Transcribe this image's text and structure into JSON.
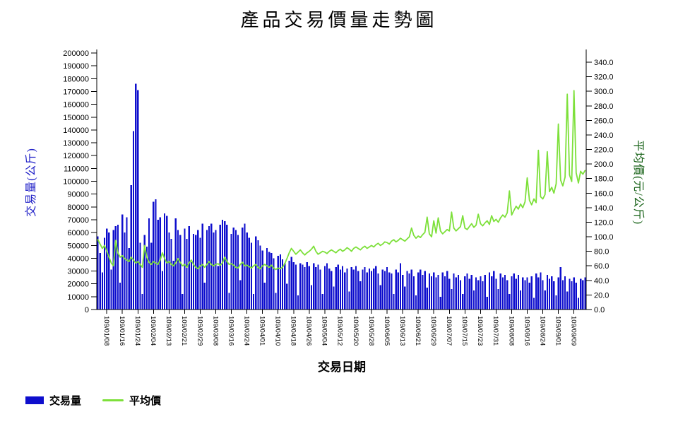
{
  "chart": {
    "title": "產品交易價量走勢圖",
    "x_axis_title": "交易日期",
    "left_axis_title": "交易量(公斤)",
    "right_axis_title": "平均價(元/公斤)",
    "legend": [
      {
        "label": "交易量",
        "type": "bar"
      },
      {
        "label": "平均價",
        "type": "line"
      }
    ],
    "colors": {
      "bar": "#0e0ecd",
      "line": "#7de03a",
      "left_axis_title": "#2323c8",
      "right_axis_title": "#156015",
      "axis_line": "#000000",
      "tick_text": "#000000"
    }
  },
  "chart_data": {
    "type": "combo",
    "title": "產品交易價量走勢圖",
    "xlabel": "交易日期",
    "grid": false,
    "legend_position": "bottom-left",
    "n_points": 220,
    "x_tick_start_index": 4,
    "x_tick_step": 7,
    "x_tick_labels": [
      "109/01/08",
      "109/01/16",
      "109/01/24",
      "109/02/04",
      "109/02/13",
      "109/02/21",
      "109/02/29",
      "109/03/08",
      "109/03/16",
      "109/03/24",
      "109/04/01",
      "109/04/10",
      "109/04/18",
      "109/04/26",
      "109/05/04",
      "109/05/12",
      "109/05/20",
      "109/05/28",
      "109/06/05",
      "109/06/13",
      "109/06/21",
      "109/06/29",
      "109/07/07",
      "109/07/15",
      "109/07/23",
      "109/07/31",
      "109/08/08",
      "109/08/16",
      "109/08/24",
      "109/09/01",
      "109/09/09"
    ],
    "left_axis": {
      "title": "交易量(公斤)",
      "min": 0,
      "max": 200000,
      "tick_step": 10000,
      "tick_labels": [
        "0",
        "10000",
        "20000",
        "30000",
        "40000",
        "50000",
        "60000",
        "70000",
        "80000",
        "90000",
        "100000",
        "110000",
        "120000",
        "130000",
        "140000",
        "150000",
        "160000",
        "170000",
        "180000",
        "190000",
        "200000"
      ]
    },
    "right_axis": {
      "title": "平均價(元/公斤)",
      "min": 0,
      "max": 340,
      "tick_step": 20,
      "plot_top_value": 352.9,
      "tick_labels": [
        "0.0",
        "20.0",
        "40.0",
        "60.0",
        "80.0",
        "100.0",
        "120.0",
        "140.0",
        "160.0",
        "180.0",
        "200.0",
        "220.0",
        "240.0",
        "260.0",
        "280.0",
        "300.0",
        "320.0",
        "340.0"
      ]
    },
    "series": [
      {
        "name": "交易量",
        "type": "bar",
        "axis": "left",
        "color": "#0e0ecd",
        "values": [
          57000,
          44000,
          29000,
          56000,
          63000,
          60000,
          31000,
          62000,
          65000,
          66000,
          21000,
          74000,
          60000,
          72000,
          48000,
          97000,
          139000,
          176000,
          171000,
          52000,
          12000,
          58000,
          49000,
          71000,
          52000,
          84000,
          86000,
          70000,
          72000,
          30000,
          75000,
          73000,
          60000,
          55000,
          38000,
          71000,
          62000,
          58000,
          12000,
          63000,
          55000,
          65000,
          37000,
          59000,
          58000,
          62000,
          56000,
          67000,
          21000,
          62000,
          65000,
          67000,
          60000,
          62000,
          34000,
          66000,
          70000,
          69000,
          66000,
          13000,
          59000,
          64000,
          62000,
          58000,
          23000,
          64000,
          67000,
          60000,
          56000,
          52000,
          12000,
          57000,
          54000,
          50000,
          46000,
          21000,
          48000,
          45000,
          44000,
          40000,
          13000,
          42000,
          43000,
          39000,
          36000,
          20000,
          38000,
          41000,
          37000,
          35000,
          11000,
          36000,
          35000,
          33000,
          37000,
          34000,
          19000,
          36000,
          33000,
          35000,
          31000,
          12000,
          34000,
          36000,
          32000,
          30000,
          18000,
          33000,
          35000,
          31000,
          34000,
          29000,
          32000,
          14000,
          33000,
          31000,
          34000,
          30000,
          22000,
          31000,
          33000,
          29000,
          32000,
          30000,
          32000,
          34000,
          28000,
          19000,
          31000,
          30000,
          33000,
          29000,
          28000,
          12000,
          31000,
          29000,
          36000,
          27000,
          18000,
          30000,
          28000,
          31000,
          26000,
          11000,
          29000,
          31000,
          27000,
          30000,
          17000,
          28000,
          26000,
          29000,
          25000,
          27000,
          10000,
          29000,
          26000,
          30000,
          24000,
          16000,
          28000,
          25000,
          27000,
          23000,
          12000,
          26000,
          28000,
          24000,
          27000,
          15000,
          25000,
          23000,
          26000,
          22000,
          27000,
          10000,
          29000,
          26000,
          30000,
          24000,
          16000,
          28000,
          25000,
          27000,
          23000,
          12000,
          26000,
          28000,
          24000,
          27000,
          15000,
          25000,
          23000,
          25000,
          21000,
          26000,
          9000,
          28000,
          25000,
          29000,
          23000,
          15000,
          27000,
          24000,
          26000,
          22000,
          11000,
          25000,
          33000,
          23000,
          26000,
          14000,
          24000,
          22000,
          25000,
          21000,
          9000,
          24000,
          23000,
          25000
        ]
      },
      {
        "name": "平均價",
        "type": "line",
        "axis": "right",
        "color": "#7de03a",
        "values": [
          96,
          90,
          84,
          88,
          80,
          72,
          64,
          60,
          95,
          78,
          72,
          74,
          70,
          68,
          66,
          72,
          68,
          64,
          66,
          62,
          58,
          88,
          72,
          65,
          62,
          66,
          64,
          62,
          68,
          78,
          70,
          64,
          66,
          62,
          60,
          64,
          70,
          65,
          60,
          62,
          58,
          64,
          68,
          62,
          58,
          56,
          60,
          62,
          58,
          62,
          66,
          62,
          60,
          62,
          63,
          61,
          64,
          72,
          66,
          62,
          63,
          61,
          58,
          57,
          62,
          65,
          60,
          61,
          59,
          57,
          60,
          62,
          58,
          56,
          60,
          62,
          60,
          58,
          61,
          57,
          55,
          57,
          56,
          58,
          63,
          70,
          78,
          84,
          80,
          76,
          79,
          82,
          78,
          75,
          78,
          80,
          83,
          87,
          80,
          76,
          78,
          80,
          79,
          77,
          80,
          82,
          80,
          78,
          81,
          83,
          80,
          82,
          85,
          83,
          80,
          84,
          86,
          84,
          82,
          85,
          87,
          84,
          86,
          88,
          86,
          89,
          91,
          88,
          90,
          93,
          92,
          90,
          94,
          96,
          93,
          95,
          98,
          96,
          94,
          97,
          100,
          112,
          102,
          98,
          101,
          99,
          103,
          106,
          127,
          104,
          100,
          122,
          105,
          126,
          108,
          104,
          107,
          110,
          108,
          134,
          112,
          108,
          111,
          114,
          129,
          112,
          110,
          114,
          118,
          113,
          116,
          131,
          118,
          115,
          119,
          122,
          117,
          129,
          121,
          124,
          120,
          126,
          130,
          127,
          133,
          163,
          130,
          136,
          142,
          138,
          145,
          140,
          148,
          181,
          150,
          144,
          152,
          147,
          219,
          155,
          152,
          158,
          217,
          162,
          168,
          160,
          173,
          255,
          178,
          170,
          182,
          296,
          185,
          176,
          301,
          188,
          174,
          190,
          186,
          191
        ]
      }
    ]
  }
}
